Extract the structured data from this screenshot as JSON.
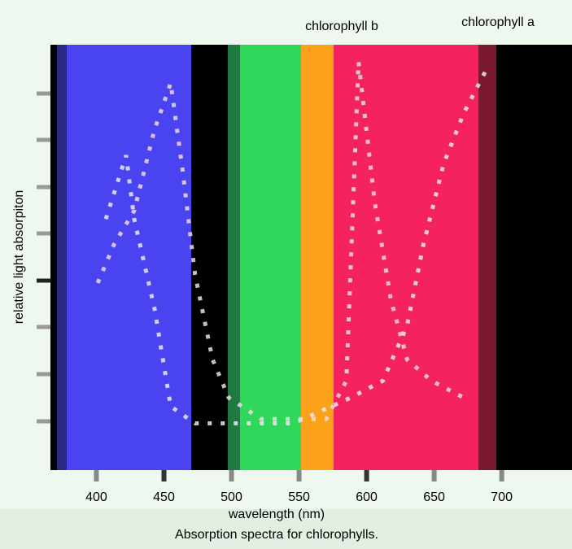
{
  "chart_data": {
    "type": "line",
    "title": "Absorption spectra for chlorophylls.",
    "xlabel": "wavelength (nm)",
    "ylabel": "relative light absorpiton",
    "annotations": [
      "chlorophyll b",
      "chlorophyll a"
    ],
    "xlim": [
      366,
      752
    ],
    "xticks": [
      400,
      450,
      500,
      550,
      600,
      650,
      700
    ],
    "ylim": [
      0,
      100
    ],
    "series": [
      {
        "color": "#e8e8f4",
        "x": [
          407,
          422,
          428,
          443,
          455,
          473,
          510,
          546,
          588,
          612,
          630,
          642,
          657,
          672,
          690
        ],
        "values": [
          59,
          74,
          59,
          38,
          15,
          11,
          11,
          11,
          17,
          21,
          34,
          53,
          72,
          84,
          95
        ]
      },
      {
        "color": "#f0d8e0",
        "x": [
          401,
          413,
          428,
          443,
          455,
          464,
          473,
          486,
          498,
          522,
          570,
          585,
          594,
          606,
          618,
          630,
          648,
          672
        ],
        "values": [
          44,
          53,
          61,
          80,
          91,
          70,
          46,
          26,
          17,
          12,
          12,
          21,
          96,
          63,
          40,
          26,
          21,
          17
        ]
      }
    ]
  }
}
